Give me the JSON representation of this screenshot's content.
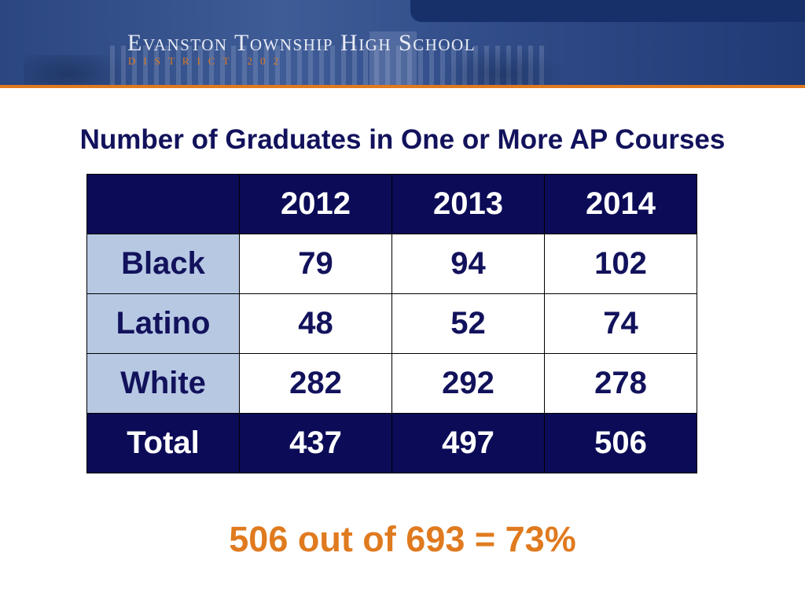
{
  "header": {
    "school_name": "Evanston Township High School",
    "district": "DISTRICT 202"
  },
  "title": "Number of Graduates in One or More AP Courses",
  "table": {
    "corner": "",
    "columns": [
      "2012",
      "2013",
      "2014"
    ],
    "rows": [
      {
        "label": "Black",
        "values": [
          "79",
          "94",
          "102"
        ]
      },
      {
        "label": "Latino",
        "values": [
          "48",
          "52",
          "74"
        ]
      },
      {
        "label": "White",
        "values": [
          "282",
          "292",
          "278"
        ]
      },
      {
        "label": "Total",
        "values": [
          "437",
          "497",
          "506"
        ]
      }
    ]
  },
  "summary": "506 out of 693 = 73%",
  "colors": {
    "navy": "#0b0b57",
    "title_navy": "#12125c",
    "row_label_blue": "#b7c8e3",
    "accent_orange": "#e07a1f"
  }
}
